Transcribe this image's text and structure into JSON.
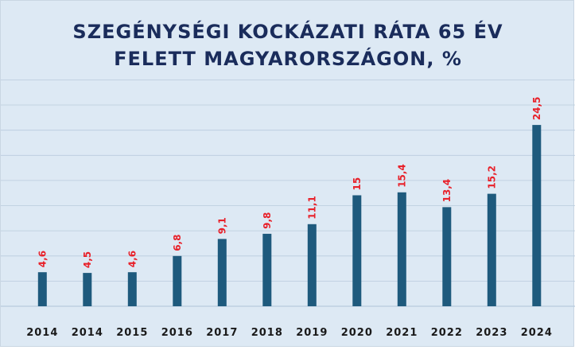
{
  "chart_data": {
    "type": "bar",
    "title_lines": [
      "SZEGÉNYSÉGI KOCKÁZATI RÁTA 65 ÉV",
      "FELETT MAGYARORSZÁGON, %"
    ],
    "categories": [
      "2014",
      "2014",
      "2015",
      "2016",
      "2017",
      "2018",
      "2019",
      "2020",
      "2021",
      "2022",
      "2023",
      "2024"
    ],
    "values": [
      4.6,
      4.5,
      4.6,
      6.8,
      9.1,
      9.8,
      11.1,
      15,
      15.4,
      13.4,
      15.2,
      24.5
    ],
    "data_labels": [
      "4,6",
      "4,5",
      "4,6",
      "6,8",
      "9,1",
      "9,8",
      "11,1",
      "15",
      "15,4",
      "13,4",
      "15,2",
      "24,5"
    ],
    "xlabel": "",
    "ylabel": "",
    "ylim": [
      0,
      30
    ],
    "grid": true,
    "legend": "none",
    "colors": {
      "bar": "#1e5a7d",
      "data_label": "#e8212a",
      "title": "#1a2c5b",
      "background": "#dde9f4",
      "gridline": "#b9cbdd"
    }
  }
}
